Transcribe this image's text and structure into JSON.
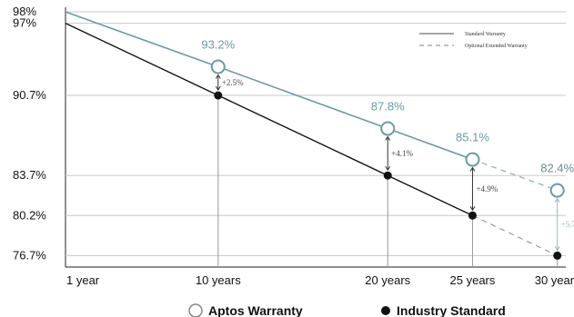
{
  "chart_data": {
    "type": "line",
    "x": [
      "1 year",
      "10 years",
      "20 years",
      "25 years",
      "30 years"
    ],
    "x_numeric": [
      1,
      10,
      20,
      25,
      30
    ],
    "yticks": [
      "98%",
      "97%",
      "90.7%",
      "83.7%",
      "80.2%",
      "76.7%"
    ],
    "ytick_values": [
      98,
      97,
      90.7,
      83.7,
      80.2,
      76.7
    ],
    "series": [
      {
        "name": "Aptos Warranty",
        "marker": "open-circle",
        "color": "#6b9aa6",
        "values": [
          98,
          93.2,
          87.8,
          85.1,
          82.4
        ],
        "labels": [
          "",
          "93.2%",
          "87.8%",
          "85.1%",
          "82.4%"
        ]
      },
      {
        "name": "Industry Standard",
        "marker": "filled-circle",
        "color": "#111111",
        "values": [
          97,
          90.7,
          83.7,
          80.2,
          76.7
        ]
      }
    ],
    "differences": [
      {
        "x": 10,
        "label": "+2.5%"
      },
      {
        "x": 20,
        "label": "+4.1%"
      },
      {
        "x": 25,
        "label": "+4.9%"
      },
      {
        "x": 30,
        "label": "+5.7%"
      }
    ],
    "line_legend": [
      {
        "label": "Standard Warranty",
        "style": "solid"
      },
      {
        "label": "Optional Extended Warranty",
        "style": "dashed"
      }
    ],
    "legend_position": "top-right",
    "grid": "horizontal at y ticks",
    "ylim": [
      75.7,
      98.4
    ],
    "xlim": [
      1,
      30.5
    ]
  }
}
